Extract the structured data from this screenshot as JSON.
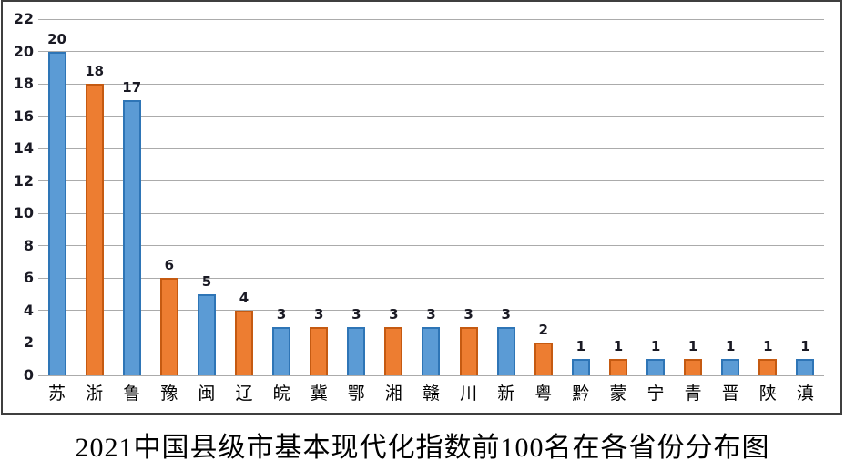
{
  "chart_data": {
    "type": "bar",
    "title": "2021中国县级市基本现代化指数前100名在各省份分布图",
    "categories": [
      "苏",
      "浙",
      "鲁",
      "豫",
      "闽",
      "辽",
      "皖",
      "冀",
      "鄂",
      "湘",
      "赣",
      "川",
      "新",
      "粤",
      "黔",
      "蒙",
      "宁",
      "青",
      "晋",
      "陕",
      "滇"
    ],
    "values": [
      20,
      18,
      17,
      6,
      5,
      4,
      3,
      3,
      3,
      3,
      3,
      3,
      3,
      2,
      1,
      1,
      1,
      1,
      1,
      1,
      1
    ],
    "xlabel": "",
    "ylabel": "",
    "ylim": [
      0,
      22
    ],
    "y_ticks": [
      0,
      2,
      4,
      6,
      8,
      10,
      12,
      14,
      16,
      18,
      20,
      22
    ],
    "grid": true,
    "legend": false,
    "data_labels": true,
    "bar_color_pattern": "alternating-by-category",
    "colors": {
      "blue_fill": "#5B9BD5",
      "blue_border": "#2E75B6",
      "orange_fill": "#ED7D31",
      "orange_border": "#C55A11",
      "gridline": "#ABABAB",
      "frame_border": "#3F3F3F",
      "number_text": "#1A1A24",
      "label_text": "#000000"
    }
  }
}
